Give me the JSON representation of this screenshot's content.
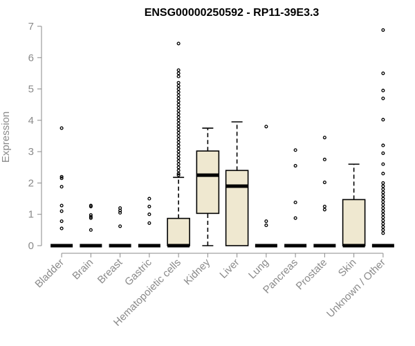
{
  "chart_data": {
    "type": "box",
    "title": "ENSG00000250592 - RP11-39E3.3",
    "xlabel": "",
    "ylabel": "Expression",
    "ylim": [
      0,
      7
    ],
    "yticks": [
      0,
      1,
      2,
      3,
      4,
      5,
      6,
      7
    ],
    "box_fill": "#efe8d0",
    "box_stroke": "#000000",
    "categories": [
      "Bladder",
      "Brain",
      "Breast",
      "Gastric",
      "Hematopoietic cells",
      "Kidney",
      "Liver",
      "Lung",
      "Pancreas",
      "Prostate",
      "Skin",
      "Unknown / Other"
    ],
    "boxes": [
      {
        "category": "Bladder",
        "min": 0,
        "q1": 0,
        "median": 0,
        "q3": 0,
        "max": 0,
        "outliers": [
          3.75,
          2.2,
          2.15,
          1.88,
          1.28,
          1.1,
          0.78,
          0.55
        ]
      },
      {
        "category": "Brain",
        "min": 0,
        "q1": 0,
        "median": 0,
        "q3": 0,
        "max": 0,
        "outliers": [
          1.28,
          1.25,
          0.98,
          0.92,
          0.88,
          0.5
        ]
      },
      {
        "category": "Breast",
        "min": 0,
        "q1": 0,
        "median": 0,
        "q3": 0,
        "max": 0,
        "outliers": [
          1.2,
          1.12,
          1.05,
          0.62
        ]
      },
      {
        "category": "Gastric",
        "min": 0,
        "q1": 0,
        "median": 0,
        "q3": 0,
        "max": 0,
        "outliers": [
          1.5,
          1.25,
          1.0,
          0.72
        ]
      },
      {
        "category": "Hematopoietic cells",
        "min": 0,
        "q1": 0,
        "median": 0,
        "q3": 0.87,
        "max": 2.18,
        "outliers": [
          6.45,
          5.6,
          5.5,
          5.4,
          5.2,
          5.1,
          5.0,
          4.9,
          4.8,
          4.7,
          4.6,
          4.5,
          4.4,
          4.3,
          4.2,
          4.1,
          4.0,
          3.9,
          3.8,
          3.7,
          3.6,
          3.5,
          3.4,
          3.3,
          3.2,
          3.1,
          3.0,
          2.9,
          2.8,
          2.7,
          2.6,
          2.5,
          2.4,
          2.3,
          2.25
        ]
      },
      {
        "category": "Kidney",
        "min": 0,
        "q1": 1.03,
        "median": 2.25,
        "q3": 3.02,
        "max": 3.75,
        "outliers": []
      },
      {
        "category": "Liver",
        "min": 0,
        "q1": 0,
        "median": 1.9,
        "q3": 2.4,
        "max": 3.95,
        "outliers": []
      },
      {
        "category": "Lung",
        "min": 0,
        "q1": 0,
        "median": 0,
        "q3": 0,
        "max": 0,
        "outliers": [
          3.8,
          0.78,
          0.65
        ]
      },
      {
        "category": "Pancreas",
        "min": 0,
        "q1": 0,
        "median": 0,
        "q3": 0,
        "max": 0,
        "outliers": [
          3.05,
          2.55,
          1.38,
          0.88
        ]
      },
      {
        "category": "Prostate",
        "min": 0,
        "q1": 0,
        "median": 0,
        "q3": 0,
        "max": 0,
        "outliers": [
          3.45,
          2.75,
          2.02,
          1.25,
          1.15
        ]
      },
      {
        "category": "Skin",
        "min": 0,
        "q1": 0,
        "median": 0,
        "q3": 1.47,
        "max": 2.6,
        "outliers": []
      },
      {
        "category": "Unknown / Other",
        "min": 0,
        "q1": 0,
        "median": 0,
        "q3": 0,
        "max": 0,
        "outliers": [
          6.88,
          5.5,
          4.95,
          4.7,
          4.02,
          3.2,
          2.95,
          2.6,
          2.3,
          2.0,
          1.9,
          1.8,
          1.7,
          1.6,
          1.5,
          1.4,
          1.3,
          1.2,
          1.1,
          1.0,
          0.9,
          0.8,
          0.7,
          0.6,
          0.5,
          0.4
        ]
      }
    ]
  }
}
